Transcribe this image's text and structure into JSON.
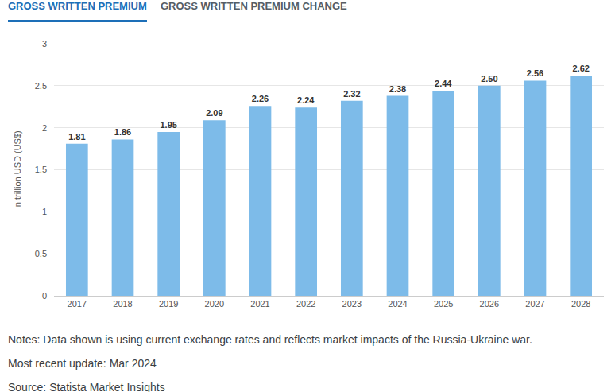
{
  "tabs": [
    "GROSS WRITTEN PREMIUM",
    "GROSS WRITTEN PREMIUM CHANGE"
  ],
  "chart_data": {
    "type": "bar",
    "y_label": "in trillion USD (US$)",
    "categories": [
      "2017",
      "2018",
      "2019",
      "2020",
      "2021",
      "2022",
      "2023",
      "2024",
      "2025",
      "2026",
      "2027",
      "2028"
    ],
    "values": [
      1.81,
      1.86,
      1.95,
      2.09,
      2.26,
      2.24,
      2.32,
      2.38,
      2.44,
      2.5,
      2.56,
      2.62
    ],
    "value_labels": [
      "1.81",
      "1.86",
      "1.95",
      "2.09",
      "2.26",
      "2.24",
      "2.32",
      "2.38",
      "2.44",
      "2.50",
      "2.56",
      "2.62"
    ],
    "color": "#7dbbe9",
    "ylim": [
      0,
      3
    ],
    "yticks": [
      0,
      0.5,
      1,
      1.5,
      2,
      2.5,
      3
    ],
    "grid": true,
    "data_labels": true
  },
  "notes": [
    "Notes: Data shown is using current exchange rates and reflects market impacts of the Russia-Ukraine war.",
    "Most recent update: Mar 2024",
    "Source: Statista Market Insights"
  ]
}
